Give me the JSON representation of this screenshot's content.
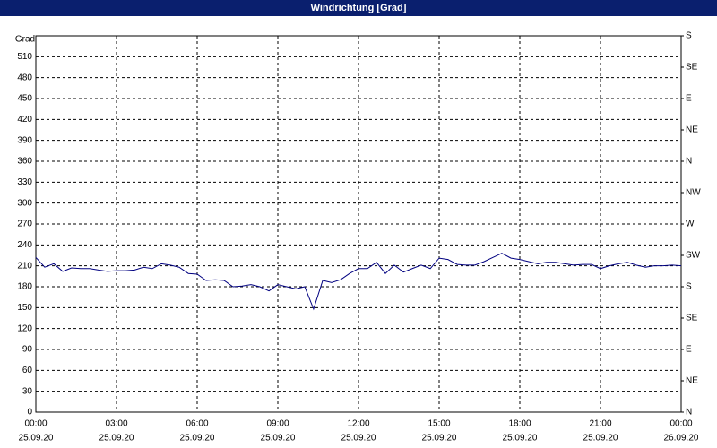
{
  "window_title": "Windrichtung [Grad]",
  "chart_data": {
    "type": "line",
    "ylabel": "Grad",
    "x": [
      0,
      0.33,
      0.67,
      1,
      1.33,
      1.67,
      2,
      2.33,
      2.67,
      3,
      3.33,
      3.67,
      4,
      4.33,
      4.67,
      5,
      5.33,
      5.67,
      6,
      6.33,
      6.67,
      7,
      7.33,
      7.67,
      8,
      8.33,
      8.67,
      9,
      9.33,
      9.67,
      10,
      10.33,
      10.67,
      11,
      11.33,
      11.67,
      12,
      12.33,
      12.67,
      13,
      13.33,
      13.67,
      14,
      14.33,
      14.67,
      15,
      15.33,
      15.67,
      16,
      16.33,
      16.67,
      17,
      17.33,
      17.67,
      18,
      18.33,
      18.67,
      19,
      19.33,
      19.67,
      20,
      20.33,
      20.67,
      21,
      21.33,
      21.67,
      22,
      22.33,
      22.67,
      23,
      23.33,
      23.67,
      24
    ],
    "series": [
      {
        "name": "Windrichtung",
        "color": "#000080",
        "values": [
          222,
          208,
          213,
          202,
          207,
          206,
          206,
          204,
          202,
          203,
          203,
          204,
          208,
          206,
          213,
          211,
          208,
          199,
          198,
          189,
          190,
          189,
          180,
          181,
          183,
          180,
          174,
          183,
          180,
          177,
          180,
          148,
          189,
          186,
          190,
          199,
          206,
          206,
          215,
          199,
          211,
          201,
          206,
          211,
          206,
          221,
          219,
          212,
          211,
          211,
          216,
          222,
          228,
          221,
          219,
          216,
          213,
          215,
          215,
          213,
          211,
          212,
          212,
          206,
          210,
          213,
          215,
          211,
          208,
          210,
          210,
          211,
          210
        ]
      }
    ],
    "xlim": [
      0,
      24
    ],
    "xticks": [
      {
        "value": 0,
        "label": "00:00"
      },
      {
        "value": 3,
        "label": "03:00"
      },
      {
        "value": 6,
        "label": "06:00"
      },
      {
        "value": 9,
        "label": "09:00"
      },
      {
        "value": 12,
        "label": "12:00"
      },
      {
        "value": 15,
        "label": "15:00"
      },
      {
        "value": 18,
        "label": "18:00"
      },
      {
        "value": 21,
        "label": "21:00"
      },
      {
        "value": 24,
        "label": "00:00"
      }
    ],
    "xtick_dates": [
      "25.09.20",
      "25.09.20",
      "25.09.20",
      "25.09.20",
      "25.09.20",
      "25.09.20",
      "25.09.20",
      "25.09.20",
      "26.09.20"
    ],
    "ylim": [
      0,
      540
    ],
    "yticks": [
      0,
      30,
      60,
      90,
      120,
      150,
      180,
      210,
      240,
      270,
      300,
      330,
      360,
      390,
      420,
      450,
      480,
      510
    ],
    "y2lim": [
      0,
      540
    ],
    "y2ticks": [
      {
        "value": 0,
        "label": "N"
      },
      {
        "value": 45,
        "label": "NE"
      },
      {
        "value": 90,
        "label": "E"
      },
      {
        "value": 135,
        "label": "SE"
      },
      {
        "value": 180,
        "label": "S"
      },
      {
        "value": 225,
        "label": "SW"
      },
      {
        "value": 270,
        "label": "W"
      },
      {
        "value": 315,
        "label": "NW"
      },
      {
        "value": 360,
        "label": "N"
      },
      {
        "value": 405,
        "label": "NE"
      },
      {
        "value": 450,
        "label": "E"
      },
      {
        "value": 495,
        "label": "SE"
      },
      {
        "value": 540,
        "label": "S"
      }
    ],
    "grid": true
  }
}
